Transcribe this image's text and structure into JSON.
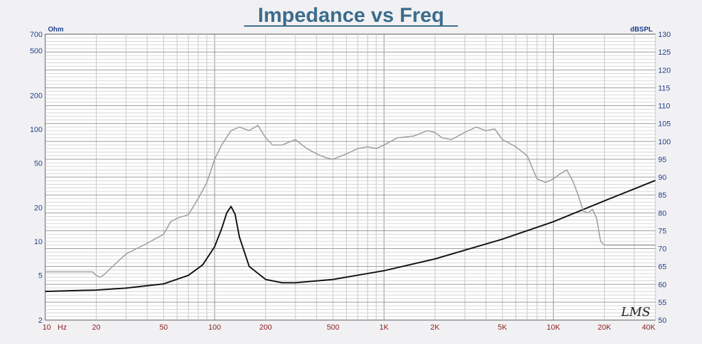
{
  "chart_data": {
    "type": "line",
    "title": "Impedance vs Freq",
    "y_left_unit": "Ohm",
    "y_right_unit": "dBSPL",
    "x_unit": "Hz",
    "x_scale": "log",
    "y_left_scale": "log",
    "xlim": [
      10,
      40000
    ],
    "ylim_left": [
      2,
      700
    ],
    "ylim_right": [
      50,
      130
    ],
    "grid": true,
    "x_ticks": [
      {
        "value": 10,
        "label": "10"
      },
      {
        "value": 20,
        "label": "20"
      },
      {
        "value": 50,
        "label": "50"
      },
      {
        "value": 100,
        "label": "100"
      },
      {
        "value": 200,
        "label": "200"
      },
      {
        "value": 500,
        "label": "500"
      },
      {
        "value": 1000,
        "label": "1K"
      },
      {
        "value": 2000,
        "label": "2K"
      },
      {
        "value": 5000,
        "label": "5K"
      },
      {
        "value": 10000,
        "label": "10K"
      },
      {
        "value": 20000,
        "label": "20K"
      },
      {
        "value": 40000,
        "label": "40K"
      }
    ],
    "y_left_ticks": [
      {
        "value": 2,
        "label": "2"
      },
      {
        "value": 5,
        "label": "5"
      },
      {
        "value": 10,
        "label": "10"
      },
      {
        "value": 20,
        "label": "20"
      },
      {
        "value": 50,
        "label": "50"
      },
      {
        "value": 100,
        "label": "100"
      },
      {
        "value": 200,
        "label": "200"
      },
      {
        "value": 500,
        "label": "500"
      },
      {
        "value": 700,
        "label": "700"
      }
    ],
    "y_right_ticks": [
      {
        "value": 50,
        "label": "50"
      },
      {
        "value": 55,
        "label": "55"
      },
      {
        "value": 60,
        "label": "60"
      },
      {
        "value": 65,
        "label": "65"
      },
      {
        "value": 70,
        "label": "70"
      },
      {
        "value": 75,
        "label": "75"
      },
      {
        "value": 80,
        "label": "80"
      },
      {
        "value": 85,
        "label": "85"
      },
      {
        "value": 90,
        "label": "90"
      },
      {
        "value": 95,
        "label": "95"
      },
      {
        "value": 100,
        "label": "100"
      },
      {
        "value": 105,
        "label": "105"
      },
      {
        "value": 110,
        "label": "110"
      },
      {
        "value": 115,
        "label": "115"
      },
      {
        "value": 120,
        "label": "120"
      },
      {
        "value": 125,
        "label": "125"
      },
      {
        "value": 130,
        "label": "130"
      }
    ],
    "series": [
      {
        "axis": "left",
        "color": "#111111",
        "x": [
          10,
          20,
          30,
          50,
          70,
          85,
          100,
          110,
          118,
          125,
          132,
          140,
          160,
          200,
          250,
          300,
          500,
          1000,
          2000,
          5000,
          10000,
          20000,
          40000
        ],
        "y": [
          3.6,
          3.7,
          3.85,
          4.2,
          5.0,
          6.2,
          9.0,
          13.0,
          18.0,
          20.5,
          17.5,
          11.0,
          6.0,
          4.6,
          4.3,
          4.3,
          4.6,
          5.5,
          7.0,
          10.5,
          15.0,
          23.0,
          35.0
        ]
      },
      {
        "axis": "right",
        "color": "#a0a0a0",
        "x": [
          10,
          19,
          20,
          21,
          22,
          25,
          30,
          40,
          50,
          55,
          60,
          70,
          80,
          90,
          100,
          110,
          125,
          140,
          160,
          180,
          200,
          220,
          250,
          300,
          350,
          400,
          450,
          500,
          600,
          700,
          800,
          900,
          1000,
          1200,
          1500,
          1800,
          2000,
          2200,
          2500,
          3000,
          3500,
          4000,
          4500,
          5000,
          6000,
          7000,
          8000,
          9000,
          10000,
          11000,
          12000,
          13000,
          14000,
          15000,
          16000,
          17000,
          18000,
          19000,
          20000,
          40000
        ],
        "y": [
          63.5,
          63.5,
          62.5,
          62,
          62.5,
          65,
          68.5,
          71.5,
          74,
          77.5,
          78.5,
          79.5,
          84,
          88.5,
          95,
          99,
          103,
          104,
          103,
          104.5,
          101,
          99,
          99,
          100.5,
          98,
          96.5,
          95.5,
          95,
          96.5,
          98,
          98.5,
          98,
          99,
          101,
          101.5,
          103,
          102.5,
          101,
          100.5,
          102.5,
          104,
          103,
          103.5,
          100.5,
          98.5,
          96,
          89.5,
          88.5,
          89.5,
          91,
          92,
          89,
          85,
          80.5,
          80,
          81,
          78.5,
          72,
          71,
          71
        ]
      }
    ],
    "annotations": [
      "LMS"
    ]
  }
}
